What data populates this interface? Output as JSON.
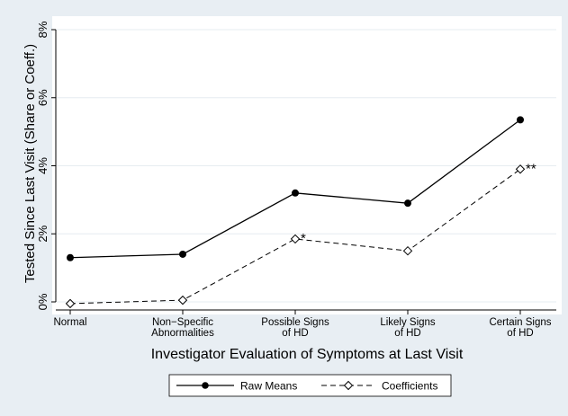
{
  "chart_data": {
    "type": "line",
    "title": "",
    "xlabel": "Investigator Evaluation of Symptoms at Last Visit",
    "ylabel": "Tested Since Last Visit (Share or Coeff.)",
    "categories": [
      [
        "Normal"
      ],
      [
        "Non−Specific",
        "Abnormalities"
      ],
      [
        "Possible Signs",
        "of HD"
      ],
      [
        "Likely Signs",
        "of HD"
      ],
      [
        "Certain Signs",
        "of HD"
      ]
    ],
    "y_ticks": [
      0,
      2,
      4,
      6,
      8
    ],
    "y_tick_labels": [
      "0%",
      "2%",
      "4%",
      "6%",
      "8%"
    ],
    "ylim": [
      0,
      8
    ],
    "grid": true,
    "legend_position": "bottom",
    "series": [
      {
        "name": "Raw Means",
        "values": [
          1.3,
          1.4,
          3.2,
          2.9,
          5.35
        ],
        "marker": "filled-circle",
        "line": "solid"
      },
      {
        "name": "Coefficients",
        "values": [
          -0.05,
          0.05,
          1.85,
          1.5,
          3.9
        ],
        "marker": "hollow-diamond",
        "line": "dashed",
        "annotations": [
          "",
          "",
          "*",
          "",
          "**"
        ]
      }
    ],
    "colors": {
      "outer_background": "#e8eef3",
      "plot_background": "#ffffff",
      "grid": "#e6ecf0",
      "line": "#000000"
    }
  }
}
